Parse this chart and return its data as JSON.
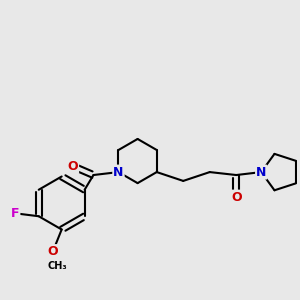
{
  "bg_color": "#e8e8e8",
  "atom_colors": {
    "C": "#000000",
    "N": "#0000cc",
    "O": "#cc0000",
    "F": "#cc00cc"
  },
  "bond_color": "#000000",
  "bond_width": 1.5
}
